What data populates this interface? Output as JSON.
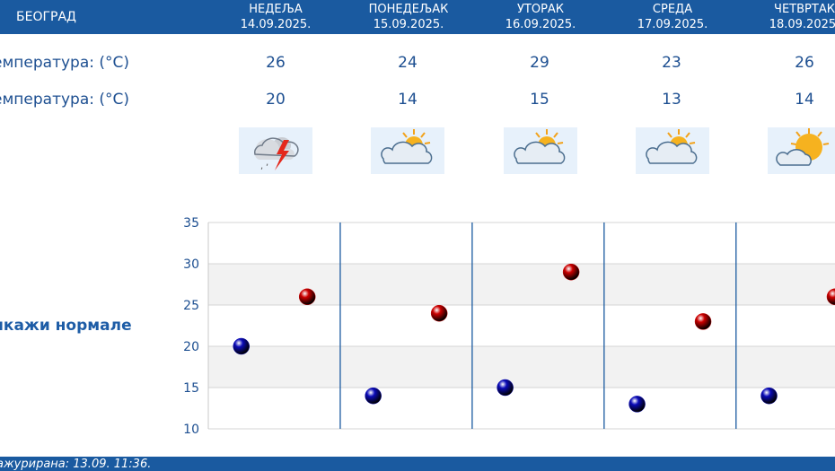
{
  "header": {
    "city": "БЕОГРАД"
  },
  "days": [
    {
      "name": "НЕДЕЉА",
      "date": "14.09.2025.",
      "max": "26",
      "min": "20",
      "icon": "thunderstorm-icon"
    },
    {
      "name": "ПОНЕДЕЉАК",
      "date": "15.09.2025.",
      "max": "24",
      "min": "14",
      "icon": "partly-cloudy-icon"
    },
    {
      "name": "УТОРАК",
      "date": "16.09.2025.",
      "max": "29",
      "min": "15",
      "icon": "partly-cloudy-icon"
    },
    {
      "name": "СРЕДА",
      "date": "17.09.2025.",
      "max": "23",
      "min": "13",
      "icon": "partly-cloudy-icon"
    },
    {
      "name": "ЧЕТВРТАК",
      "date": "18.09.2025.",
      "max": "26",
      "min": "14",
      "icon": "mostly-sunny-icon"
    }
  ],
  "rows": {
    "max_label": "емпература: (°C)",
    "min_label": "емпература: (°C)",
    "icon_label": ":"
  },
  "norm_link": "икажи нормале",
  "footer": {
    "updated": "ажурирана:  13.09.  11:36."
  },
  "chart_data": {
    "type": "scatter",
    "categories": [
      "НЕДЕЉА",
      "ПОНЕДЕЉАК",
      "УТОРАК",
      "СРЕДА",
      "ЧЕТВРТАК"
    ],
    "yticks": [
      "35",
      "30",
      "25",
      "20",
      "15",
      "10"
    ],
    "ylim": [
      10,
      35
    ],
    "grid": true,
    "series": [
      {
        "values": [
          26,
          24,
          29,
          23,
          26
        ],
        "color": "#cc0000"
      },
      {
        "values": [
          20,
          14,
          15,
          13,
          14
        ],
        "color": "#0a0ab8"
      }
    ]
  }
}
